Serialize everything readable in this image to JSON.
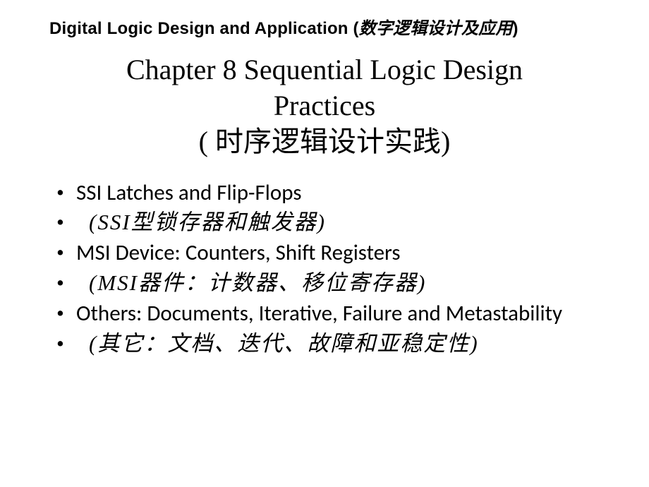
{
  "header": {
    "en": "Digital Logic Design and Application (",
    "zh": "数字逻辑设计及应用",
    "close": ")"
  },
  "title": {
    "line1": "Chapter 8 Sequential Logic Design",
    "line2": "Practices",
    "line3": "( 时序逻辑设计实践)"
  },
  "bullets": [
    {
      "text": "SSI Latches and Flip-Flops",
      "class": "en"
    },
    {
      "text": "  (SSI型锁存器和触发器)",
      "class": "zh-body indent"
    },
    {
      "text": "MSI Device: Counters, Shift Registers",
      "class": "en"
    },
    {
      "text": "  (MSI器件：计数器、移位寄存器)",
      "class": "zh-body indent"
    },
    {
      "text": "Others: Documents, Iterative, Failure and Metastability",
      "class": "en"
    },
    {
      "text": "  (其它：文档、迭代、故障和亚稳定性)",
      "class": "zh-body indent"
    }
  ],
  "styles": {
    "background": "#ffffff",
    "text_color": "#000000",
    "header_fontsize": 24,
    "title_fontsize": 40,
    "body_fontsize": 31
  }
}
